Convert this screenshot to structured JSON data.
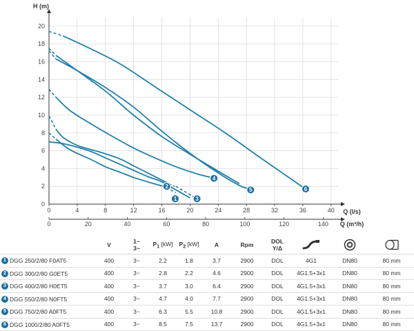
{
  "chart_data": {
    "type": "line",
    "y_axis_label": "H (m)",
    "x_axis_label": "Q (l/s)",
    "x2_axis_label": "Q (m³/h)",
    "xlim": [
      0,
      41
    ],
    "ylim": [
      0,
      21
    ],
    "x_ticks": [
      0,
      4,
      8,
      12,
      16,
      20,
      24,
      28,
      32,
      36,
      40
    ],
    "y_ticks": [
      0,
      2,
      4,
      6,
      8,
      10,
      12,
      14,
      16,
      18,
      20
    ],
    "x2_ticks": [
      0,
      20,
      40,
      60,
      80,
      100,
      120,
      140
    ],
    "grid": true,
    "line_color": "#1f7ea8",
    "series": [
      {
        "name": "1",
        "solid": [
          [
            1,
            7.3
          ],
          [
            3,
            6.1
          ],
          [
            6,
            5.0
          ],
          [
            8,
            4.2
          ],
          [
            10,
            3.6
          ],
          [
            12,
            3.0
          ],
          [
            14,
            2.5
          ],
          [
            16,
            2.05
          ]
        ],
        "dashed": [
          [
            0,
            8.0
          ],
          [
            1,
            7.3
          ]
        ],
        "dashed_end": [
          [
            16,
            2.05
          ],
          [
            18,
            1.3
          ]
        ],
        "label_at": [
          17.9,
          0.6
        ]
      },
      {
        "name": "2",
        "solid": [
          [
            1,
            8.4
          ],
          [
            2,
            7.5
          ],
          [
            4,
            6.6
          ],
          [
            7,
            5.9
          ],
          [
            10,
            5.1
          ],
          [
            12,
            4.3
          ],
          [
            14,
            3.5
          ],
          [
            16,
            2.7
          ],
          [
            17,
            2.3
          ]
        ],
        "dashed": [
          [
            0,
            9.9
          ],
          [
            1,
            8.4
          ]
        ],
        "dashed_end": [
          [
            17,
            2.3
          ],
          [
            17.8,
            2.0
          ]
        ],
        "label_at": [
          16.7,
          2.0
        ]
      },
      {
        "name": "3",
        "solid": [
          [
            0,
            7.0
          ],
          [
            2,
            6.8
          ],
          [
            4,
            6.4
          ],
          [
            6,
            5.9
          ],
          [
            8,
            5.2
          ],
          [
            10,
            4.5
          ],
          [
            12,
            3.8
          ],
          [
            14,
            3.1
          ],
          [
            16,
            2.5
          ],
          [
            18,
            1.6
          ],
          [
            20,
            0.7
          ]
        ],
        "dashed": [],
        "dashed_end": [
          [
            18,
            2.0
          ],
          [
            21,
            0.6
          ]
        ],
        "label_at": [
          21.0,
          0.6
        ]
      },
      {
        "name": "4",
        "solid": [
          [
            1,
            12.0
          ],
          [
            3,
            10.5
          ],
          [
            6,
            9.0
          ],
          [
            9,
            7.6
          ],
          [
            12,
            6.3
          ],
          [
            15,
            5.2
          ],
          [
            18,
            4.2
          ],
          [
            21,
            3.4
          ],
          [
            23,
            3.0
          ]
        ],
        "dashed": [
          [
            0,
            12.9
          ],
          [
            1,
            12.0
          ]
        ],
        "dashed_end": [],
        "label_at": [
          23.4,
          2.9
        ]
      },
      {
        "name": "5",
        "solid": [
          [
            1,
            16.3
          ],
          [
            4,
            15.0
          ],
          [
            8,
            13.1
          ],
          [
            12,
            10.9
          ],
          [
            16,
            8.2
          ],
          [
            20,
            5.7
          ],
          [
            24,
            3.5
          ],
          [
            27,
            2.1
          ],
          [
            28.5,
            1.7
          ]
        ],
        "dashed": [
          [
            0,
            17.2
          ],
          [
            1,
            16.3
          ]
        ],
        "dashed_end": [],
        "label_at": [
          28.6,
          1.6
        ]
      },
      {
        "name": "6",
        "solid": [
          [
            2,
            18.9
          ],
          [
            5,
            17.8
          ],
          [
            10,
            15.8
          ],
          [
            15,
            13.2
          ],
          [
            20,
            10.6
          ],
          [
            25,
            8.0
          ],
          [
            30,
            5.2
          ],
          [
            34,
            3.0
          ],
          [
            36,
            1.9
          ]
        ],
        "dashed": [
          [
            0,
            19.4
          ],
          [
            2,
            18.9
          ]
        ],
        "dashed_end": [],
        "label_at": [
          36.4,
          1.7
        ]
      },
      {
        "name": "",
        "solid": [
          [
            1,
            16.7
          ],
          [
            4,
            15.0
          ],
          [
            8,
            12.7
          ],
          [
            12,
            10.0
          ],
          [
            16,
            7.6
          ],
          [
            20,
            5.6
          ],
          [
            24,
            3.7
          ],
          [
            27,
            2.3
          ]
        ],
        "dashed": [
          [
            0,
            17.5
          ],
          [
            1,
            16.7
          ]
        ],
        "dashed_end": [],
        "label_at": null
      }
    ]
  },
  "table": {
    "headers": {
      "v": "V",
      "phase_top": "1~",
      "phase_bot": "3~",
      "p1": "P",
      "p1_sub": "1",
      "p1_unit": " [kW]",
      "p2": "P",
      "p2_sub": "2",
      "p2_unit": " [kW]",
      "a": "A",
      "rpm": "Rpm",
      "dol_top": "DOL",
      "dol_bot": "Y/Δ",
      "cable_icon": "cable-icon",
      "flange_icon": "flange-icon",
      "outlet_icon": "outlet-icon"
    },
    "rows": [
      {
        "num": "1",
        "model": "DGG 250/2/80 F0AT5",
        "v": "400",
        "phase": "3~",
        "p1": "2.2",
        "p2": "1.8",
        "a": "3.7",
        "rpm": "2900",
        "dol": "DOL",
        "cable": "4G1",
        "flange": "DN80",
        "outlet": "80 mm"
      },
      {
        "num": "2",
        "model": "DGG 300/2/80 G0ET5",
        "v": "400",
        "phase": "3~",
        "p1": "2.8",
        "p2": "2.2",
        "a": "4.6",
        "rpm": "2900",
        "dol": "DOL",
        "cable": "4G1.5+3x1",
        "flange": "DN80",
        "outlet": "80 mm"
      },
      {
        "num": "3",
        "model": "DGG 400/2/80 H0ET5",
        "v": "400",
        "phase": "3~",
        "p1": "3.7",
        "p2": "3.0",
        "a": "6.4",
        "rpm": "2900",
        "dol": "DOL",
        "cable": "4G1.5+3x1",
        "flange": "DN80",
        "outlet": "80 mm"
      },
      {
        "num": "4",
        "model": "DGG 550/2/80 N0FT5",
        "v": "400",
        "phase": "3~",
        "p1": "4.7",
        "p2": "4.0",
        "a": "7.7",
        "rpm": "2900",
        "dol": "DOL",
        "cable": "4G1.5+3x1",
        "flange": "DN80",
        "outlet": "80 mm"
      },
      {
        "num": "5",
        "model": "DGG 750/2/80 A0FT5",
        "v": "400",
        "phase": "3~",
        "p1": "6.3",
        "p2": "5.5",
        "a": "10.8",
        "rpm": "2900",
        "dol": "DOL",
        "cable": "4G1.5+3x1",
        "flange": "DN80",
        "outlet": "80 mm"
      },
      {
        "num": "6",
        "model": "DGG 1000/2/80 A0FT5",
        "v": "400",
        "phase": "3~",
        "p1": "8.5",
        "p2": "7.5",
        "a": "13.7",
        "rpm": "2900",
        "dol": "DOL",
        "cable": "4G1.5+3x1",
        "flange": "DN80",
        "outlet": "80 mm"
      }
    ]
  }
}
